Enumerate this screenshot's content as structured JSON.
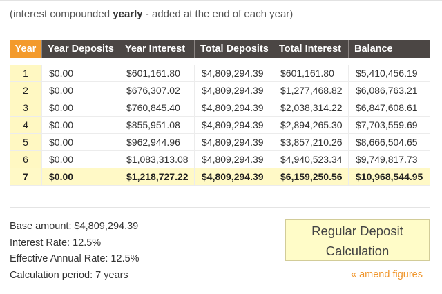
{
  "note": {
    "prefix": "(interest compounded ",
    "emphasis": "yearly",
    "suffix": " - added at the end of each year)"
  },
  "table": {
    "headers": [
      "Year",
      "Year Deposits",
      "Year Interest",
      "Total Deposits",
      "Total Interest",
      "Balance"
    ],
    "rows": [
      [
        "1",
        "$0.00",
        "$601,161.80",
        "$4,809,294.39",
        "$601,161.80",
        "$5,410,456.19"
      ],
      [
        "2",
        "$0.00",
        "$676,307.02",
        "$4,809,294.39",
        "$1,277,468.82",
        "$6,086,763.21"
      ],
      [
        "3",
        "$0.00",
        "$760,845.40",
        "$4,809,294.39",
        "$2,038,314.22",
        "$6,847,608.61"
      ],
      [
        "4",
        "$0.00",
        "$855,951.08",
        "$4,809,294.39",
        "$2,894,265.30",
        "$7,703,559.69"
      ],
      [
        "5",
        "$0.00",
        "$962,944.96",
        "$4,809,294.39",
        "$3,857,210.26",
        "$8,666,504.65"
      ],
      [
        "6",
        "$0.00",
        "$1,083,313.08",
        "$4,809,294.39",
        "$4,940,523.34",
        "$9,749,817.73"
      ],
      [
        "7",
        "$0.00",
        "$1,218,727.22",
        "$4,809,294.39",
        "$6,159,250.56",
        "$10,968,544.95"
      ]
    ]
  },
  "summary": {
    "base_amount": "Base amount: $4,809,294.39",
    "interest_rate": "Interest Rate: 12.5%",
    "effective_rate": "Effective Annual Rate: 12.5%",
    "period": "Calculation period: 7 years"
  },
  "button": {
    "line1": "Regular Deposit",
    "line2": "Calculation"
  },
  "amend_link": "« amend figures",
  "colors": {
    "header_bg": "#4b4644",
    "year_header_bg": "#f39a2c",
    "year_cell_bg": "#fff8c2",
    "final_row_bg": "#fff9c6",
    "link": "#f0962c"
  }
}
